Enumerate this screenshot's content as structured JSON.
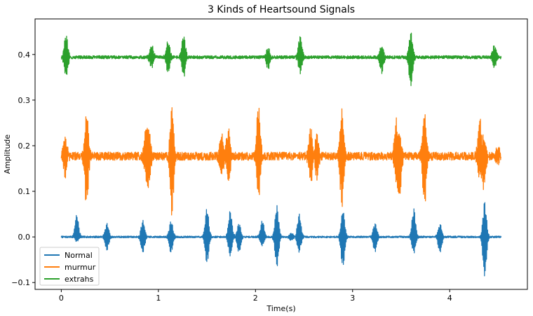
{
  "chart_data": {
    "type": "line",
    "title": "3 Kinds of Heartsound Signals",
    "xlabel": "Time(s)",
    "ylabel": "Amplitude",
    "xlim": [
      -0.27,
      4.8
    ],
    "ylim": [
      -0.115,
      0.478
    ],
    "xticks": [
      0,
      1,
      2,
      3,
      4
    ],
    "yticks": [
      -0.1,
      0.0,
      0.1,
      0.2,
      0.3,
      0.4
    ],
    "ytick_labels": [
      "−0.1",
      "0.0",
      "0.1",
      "0.2",
      "0.3",
      "0.4"
    ],
    "grid": false,
    "legend_position": "lower-left",
    "duration_s": 4.53,
    "series": [
      {
        "name": "Normal",
        "color": "#1f77b4",
        "baseline": 0.0,
        "noise_amplitude": 0.002,
        "events": [
          {
            "t": 0.16,
            "min": -0.01,
            "max": 0.05
          },
          {
            "t": 0.47,
            "min": -0.03,
            "max": 0.03
          },
          {
            "t": 0.84,
            "min": -0.035,
            "max": 0.035
          },
          {
            "t": 1.13,
            "min": -0.035,
            "max": 0.035
          },
          {
            "t": 1.5,
            "min": -0.06,
            "max": 0.062
          },
          {
            "t": 1.74,
            "min": -0.042,
            "max": 0.058
          },
          {
            "t": 1.83,
            "min": -0.035,
            "max": 0.03
          },
          {
            "t": 2.07,
            "min": -0.02,
            "max": 0.037
          },
          {
            "t": 2.22,
            "min": -0.066,
            "max": 0.068
          },
          {
            "t": 2.37,
            "min": -0.009,
            "max": 0.01
          },
          {
            "t": 2.45,
            "min": -0.034,
            "max": 0.05
          },
          {
            "t": 2.9,
            "min": -0.068,
            "max": 0.06
          },
          {
            "t": 3.23,
            "min": -0.032,
            "max": 0.032
          },
          {
            "t": 3.63,
            "min": -0.035,
            "max": 0.062
          },
          {
            "t": 3.9,
            "min": -0.035,
            "max": 0.03
          },
          {
            "t": 4.36,
            "min": -0.087,
            "max": 0.077
          }
        ]
      },
      {
        "name": "murmur",
        "color": "#ff7f0e",
        "baseline": 0.177,
        "noise_amplitude": 0.009,
        "events": [
          {
            "t": 0.04,
            "min": 0.135,
            "max": 0.225
          },
          {
            "t": 0.26,
            "min": 0.07,
            "max": 0.27
          },
          {
            "t": 0.87,
            "min": 0.13,
            "max": 0.24
          },
          {
            "t": 0.9,
            "min": 0.1,
            "max": 0.25
          },
          {
            "t": 1.14,
            "min": 0.05,
            "max": 0.29
          },
          {
            "t": 1.65,
            "min": 0.13,
            "max": 0.225
          },
          {
            "t": 1.72,
            "min": 0.12,
            "max": 0.24
          },
          {
            "t": 2.03,
            "min": 0.085,
            "max": 0.292
          },
          {
            "t": 2.57,
            "min": 0.12,
            "max": 0.24
          },
          {
            "t": 2.63,
            "min": 0.13,
            "max": 0.23
          },
          {
            "t": 2.89,
            "min": 0.065,
            "max": 0.278
          },
          {
            "t": 3.45,
            "min": 0.12,
            "max": 0.26
          },
          {
            "t": 3.48,
            "min": 0.07,
            "max": 0.23
          },
          {
            "t": 3.74,
            "min": 0.07,
            "max": 0.272
          },
          {
            "t": 4.31,
            "min": 0.13,
            "max": 0.26
          },
          {
            "t": 4.35,
            "min": 0.1,
            "max": 0.22
          },
          {
            "t": 4.5,
            "min": 0.16,
            "max": 0.2
          }
        ]
      },
      {
        "name": "extrahs",
        "color": "#2ca02c",
        "baseline": 0.394,
        "noise_amplitude": 0.0035,
        "events": [
          {
            "t": 0.05,
            "min": 0.35,
            "max": 0.445
          },
          {
            "t": 0.93,
            "min": 0.37,
            "max": 0.42
          },
          {
            "t": 1.1,
            "min": 0.36,
            "max": 0.43
          },
          {
            "t": 1.26,
            "min": 0.35,
            "max": 0.444
          },
          {
            "t": 2.13,
            "min": 0.37,
            "max": 0.415
          },
          {
            "t": 2.46,
            "min": 0.36,
            "max": 0.442
          },
          {
            "t": 3.3,
            "min": 0.36,
            "max": 0.42
          },
          {
            "t": 3.6,
            "min": 0.33,
            "max": 0.45
          },
          {
            "t": 4.46,
            "min": 0.37,
            "max": 0.42
          }
        ]
      }
    ]
  }
}
